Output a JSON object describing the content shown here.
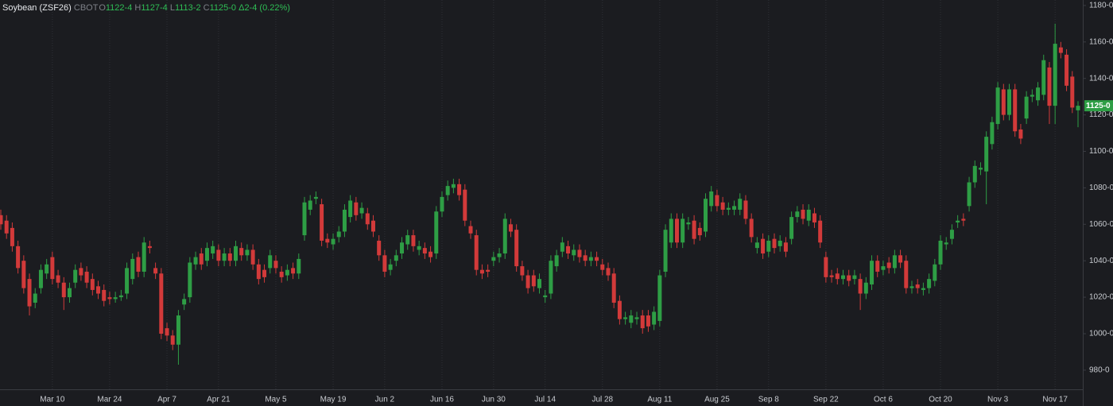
{
  "chart_data": {
    "type": "candlestick",
    "header": {
      "symbol": "Soybean (ZSF26)",
      "exchange": "CBOT",
      "fields": [
        {
          "label": "O",
          "value": "1122-4"
        },
        {
          "label": "H",
          "value": "1127-4"
        },
        {
          "label": "L",
          "value": "1113-2"
        },
        {
          "label": "C",
          "value": "1125-0"
        }
      ],
      "change": "Δ2-4",
      "change_percent": "(0.22%)"
    },
    "last_price": {
      "value": 1125,
      "label": "1125-0"
    },
    "up_color": "#2e9e45",
    "down_color": "#d23a3a",
    "grid": true,
    "ylim": [
      969.5,
      1183
    ],
    "yticks": [
      {
        "value": 980,
        "label": "980-0"
      },
      {
        "value": 1000,
        "label": "1000-0"
      },
      {
        "value": 1020,
        "label": "1020-0"
      },
      {
        "value": 1040,
        "label": "1040-0"
      },
      {
        "value": 1060,
        "label": "1060-0"
      },
      {
        "value": 1080,
        "label": "1080-0"
      },
      {
        "value": 1100,
        "label": "1100-0"
      },
      {
        "value": 1120,
        "label": "1120-0"
      },
      {
        "value": 1140,
        "label": "1140-0"
      },
      {
        "value": 1160,
        "label": "1160-0"
      },
      {
        "value": 1180,
        "label": "1180-0"
      }
    ],
    "categories": [
      null,
      null,
      null,
      null,
      null,
      null,
      null,
      null,
      null,
      "Mar 10",
      null,
      null,
      null,
      null,
      null,
      null,
      null,
      null,
      null,
      "Mar 24",
      null,
      null,
      null,
      null,
      null,
      null,
      null,
      null,
      null,
      "Apr 7",
      null,
      null,
      null,
      null,
      null,
      null,
      null,
      null,
      "Apr 21",
      null,
      null,
      null,
      null,
      null,
      null,
      null,
      null,
      null,
      "May 5",
      null,
      null,
      null,
      null,
      null,
      null,
      null,
      null,
      null,
      "May 19",
      null,
      null,
      null,
      null,
      null,
      null,
      null,
      null,
      "Jun 2",
      null,
      null,
      null,
      null,
      null,
      null,
      null,
      null,
      null,
      "Jun 16",
      null,
      null,
      null,
      null,
      null,
      null,
      null,
      null,
      "Jun 30",
      null,
      null,
      null,
      null,
      null,
      null,
      null,
      null,
      "Jul 14",
      null,
      null,
      null,
      null,
      null,
      null,
      null,
      null,
      null,
      "Jul 28",
      null,
      null,
      null,
      null,
      null,
      null,
      null,
      null,
      null,
      "Aug 11",
      null,
      null,
      null,
      null,
      null,
      null,
      null,
      null,
      null,
      "Aug 25",
      null,
      null,
      null,
      null,
      null,
      null,
      null,
      null,
      "Sep 8",
      null,
      null,
      null,
      null,
      null,
      null,
      null,
      null,
      null,
      "Sep 22",
      null,
      null,
      null,
      null,
      null,
      null,
      null,
      null,
      null,
      "Oct 6",
      null,
      null,
      null,
      null,
      null,
      null,
      null,
      null,
      null,
      "Oct 20",
      null,
      null,
      null,
      null,
      null,
      null,
      null,
      null,
      null,
      "Nov 3",
      null,
      null,
      null,
      null,
      null,
      null,
      null,
      null,
      null,
      "Nov 17",
      null,
      null,
      null,
      null
    ],
    "open": [
      1065,
      1062,
      1058,
      1048,
      1040,
      1030,
      1017,
      1025,
      1033,
      1042,
      1032,
      1028,
      1020,
      1028,
      1036,
      1034,
      1030,
      1026,
      1024,
      1020,
      1019,
      1020,
      1022,
      1030,
      1042,
      1034,
      1048,
      1036,
      1033,
      1003,
      999,
      994,
      1016,
      1020,
      1038,
      1044,
      1040,
      1044,
      1046,
      1040,
      1044,
      1040,
      1047,
      1043,
      1046,
      1038,
      1035,
      1036,
      1040,
      1034,
      1032,
      1036,
      1033,
      1054,
      1068,
      1074,
      1071,
      1052,
      1049,
      1053,
      1056,
      1064,
      1072,
      1066,
      1066,
      1062,
      1051,
      1043,
      1035,
      1040,
      1044,
      1049,
      1054,
      1046,
      1047,
      1045,
      1044,
      1067,
      1076,
      1080,
      1082,
      1079,
      1059,
      1054,
      1035,
      1035,
      1040,
      1042,
      1044,
      1060,
      1057,
      1037,
      1032,
      1032,
      1025,
      1020,
      1022,
      1037,
      1045,
      1048,
      1043,
      1046,
      1043,
      1040,
      1042,
      1038,
      1036,
      1033,
      1018,
      1008,
      1006,
      1008,
      1010,
      1010,
      1005,
      1007,
      1034,
      1050,
      1063,
      1050,
      1060,
      1062,
      1058,
      1056,
      1070,
      1076,
      1072,
      1068,
      1068,
      1068,
      1073,
      1063,
      1047,
      1052,
      1045,
      1052,
      1048,
      1050,
      1052,
      1064,
      1068,
      1062,
      1066,
      1062,
      1042,
      1032,
      1033,
      1030,
      1032,
      1030,
      1030,
      1022,
      1027,
      1040,
      1035,
      1039,
      1036,
      1043,
      1040,
      1025,
      1027,
      1024,
      1025,
      1029,
      1038,
      1049,
      1052,
      1061,
      1063,
      1070,
      1083,
      1090,
      1089,
      1104,
      1115,
      1134,
      1120,
      1134,
      1112,
      1118,
      1130,
      1128,
      1131,
      1146,
      1125,
      1157,
      1153,
      1141,
      1122.5
    ],
    "high": [
      1068,
      1065,
      1061,
      1051,
      1043,
      1033,
      1025,
      1038,
      1041,
      1045,
      1035,
      1031,
      1028,
      1038,
      1039,
      1037,
      1033,
      1029,
      1027,
      1023,
      1023,
      1024,
      1039,
      1044,
      1045,
      1053,
      1051,
      1039,
      1036,
      1006,
      1002,
      1013,
      1022,
      1042,
      1045,
      1047,
      1050,
      1051,
      1049,
      1047,
      1047,
      1051,
      1050,
      1049,
      1049,
      1041,
      1038,
      1046,
      1043,
      1037,
      1038,
      1039,
      1044,
      1075,
      1076,
      1078,
      1074,
      1055,
      1055,
      1059,
      1071,
      1076,
      1075,
      1072,
      1069,
      1065,
      1054,
      1046,
      1041,
      1046,
      1053,
      1057,
      1057,
      1051,
      1050,
      1048,
      1070,
      1078,
      1084,
      1085,
      1085,
      1082,
      1062,
      1057,
      1038,
      1038,
      1045,
      1047,
      1066,
      1063,
      1060,
      1040,
      1035,
      1035,
      1033,
      1024,
      1043,
      1046,
      1053,
      1051,
      1049,
      1049,
      1046,
      1045,
      1045,
      1041,
      1039,
      1036,
      1021,
      1012,
      1013,
      1012,
      1013,
      1013,
      1015,
      1035,
      1060,
      1066,
      1066,
      1066,
      1064,
      1065,
      1061,
      1077,
      1081,
      1079,
      1075,
      1072,
      1073,
      1077,
      1076,
      1066,
      1053,
      1055,
      1054,
      1055,
      1054,
      1053,
      1067,
      1070,
      1071,
      1071,
      1069,
      1065,
      1045,
      1035,
      1036,
      1035,
      1035,
      1035,
      1033,
      1031,
      1043,
      1043,
      1040,
      1042,
      1046,
      1046,
      1043,
      1029,
      1030,
      1028,
      1033,
      1041,
      1054,
      1053,
      1060,
      1065,
      1066,
      1086,
      1095,
      1094,
      1111,
      1119,
      1138,
      1137,
      1137,
      1137,
      1115,
      1133,
      1134,
      1138,
      1153,
      1149,
      1170,
      1160,
      1156,
      1144,
      1127.5
    ],
    "low": [
      1057,
      1052,
      1045,
      1033,
      1022,
      1010,
      1014,
      1022,
      1030,
      1027,
      1025,
      1013,
      1017,
      1025,
      1029,
      1025,
      1021,
      1019,
      1015,
      1016,
      1017,
      1018,
      1019,
      1027,
      1031,
      1031,
      1044,
      1030,
      997,
      996,
      991,
      983,
      1013,
      1017,
      1035,
      1035,
      1037,
      1041,
      1037,
      1037,
      1037,
      1037,
      1040,
      1040,
      1035,
      1027,
      1028,
      1033,
      1033,
      1028,
      1029,
      1030,
      1030,
      1051,
      1065,
      1071,
      1048,
      1047,
      1046,
      1050,
      1053,
      1061,
      1062,
      1063,
      1057,
      1053,
      1040,
      1031,
      1032,
      1037,
      1041,
      1046,
      1045,
      1043,
      1041,
      1039,
      1041,
      1064,
      1073,
      1077,
      1073,
      1059,
      1052,
      1032,
      1030,
      1031,
      1037,
      1039,
      1041,
      1053,
      1034,
      1029,
      1022,
      1023,
      1022,
      1017,
      1019,
      1034,
      1042,
      1041,
      1040,
      1039,
      1037,
      1037,
      1037,
      1032,
      1029,
      1014,
      1005,
      1005,
      1003,
      1005,
      1000,
      1001,
      1002,
      1004,
      1031,
      1047,
      1047,
      1047,
      1057,
      1049,
      1051,
      1053,
      1067,
      1067,
      1065,
      1065,
      1065,
      1065,
      1060,
      1050,
      1044,
      1041,
      1042,
      1044,
      1045,
      1042,
      1049,
      1061,
      1060,
      1059,
      1058,
      1047,
      1028,
      1028,
      1027,
      1027,
      1026,
      1027,
      1013,
      1019,
      1024,
      1031,
      1032,
      1033,
      1033,
      1036,
      1022,
      1022,
      1022,
      1021,
      1022,
      1026,
      1035,
      1046,
      1049,
      1058,
      1059,
      1067,
      1080,
      1087,
      1071,
      1101,
      1112,
      1117,
      1117,
      1108,
      1104,
      1115,
      1127,
      1125,
      1128,
      1115,
      1115,
      1151,
      1133,
      1121,
      1113.25
    ],
    "close": [
      1060,
      1055,
      1048,
      1036,
      1025,
      1015,
      1022,
      1035,
      1038,
      1030,
      1028,
      1020,
      1025,
      1035,
      1032,
      1028,
      1024,
      1022,
      1018,
      1019,
      1020,
      1021,
      1036,
      1041,
      1034,
      1050,
      1047,
      1033,
      1000,
      999,
      994,
      1010,
      1019,
      1039,
      1042,
      1038,
      1047,
      1048,
      1040,
      1044,
      1040,
      1048,
      1043,
      1046,
      1038,
      1030,
      1031,
      1043,
      1036,
      1031,
      1035,
      1033,
      1041,
      1072,
      1073,
      1075,
      1051,
      1050,
      1052,
      1056,
      1068,
      1073,
      1065,
      1069,
      1060,
      1056,
      1043,
      1034,
      1038,
      1043,
      1050,
      1054,
      1048,
      1048,
      1044,
      1042,
      1067,
      1075,
      1081,
      1082,
      1076,
      1062,
      1055,
      1035,
      1033,
      1034,
      1042,
      1044,
      1063,
      1056,
      1037,
      1032,
      1025,
      1026,
      1030,
      1021,
      1040,
      1043,
      1050,
      1044,
      1046,
      1042,
      1040,
      1042,
      1040,
      1035,
      1032,
      1017,
      1008,
      1009,
      1010,
      1009,
      1003,
      1004,
      1012,
      1032,
      1057,
      1063,
      1050,
      1063,
      1061,
      1052,
      1054,
      1074,
      1078,
      1070,
      1068,
      1069,
      1070,
      1074,
      1063,
      1053,
      1050,
      1044,
      1051,
      1047,
      1051,
      1045,
      1064,
      1067,
      1063,
      1068,
      1061,
      1050,
      1031,
      1031,
      1030,
      1032,
      1029,
      1032,
      1022,
      1028,
      1040,
      1034,
      1037,
      1036,
      1043,
      1039,
      1025,
      1026,
      1025,
      1025,
      1030,
      1038,
      1051,
      1050,
      1057,
      1062,
      1062,
      1083,
      1092,
      1091,
      1108,
      1116,
      1135,
      1120,
      1134,
      1111,
      1107,
      1130,
      1131,
      1135,
      1150,
      1125,
      1159,
      1154,
      1136,
      1124,
      1125
    ]
  }
}
